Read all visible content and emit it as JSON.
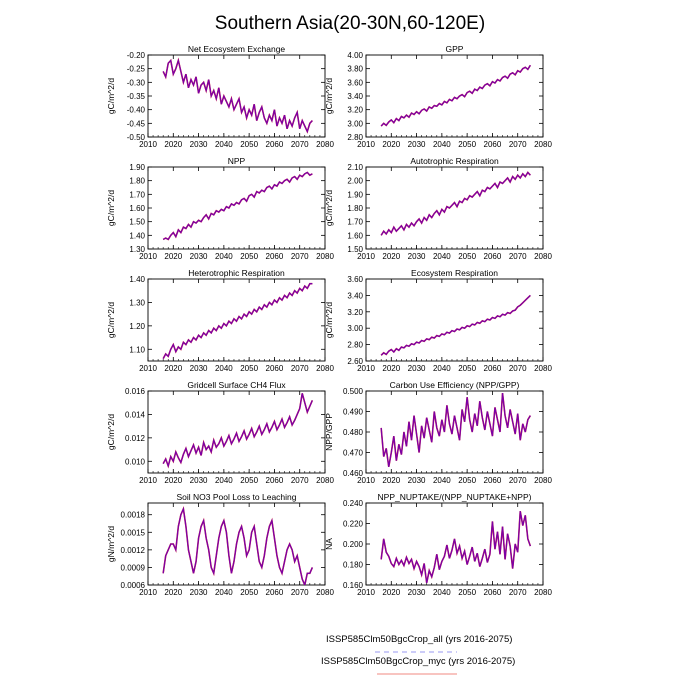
{
  "title": "Southern Asia(20-30N,60-120E)",
  "colors": {
    "series_all": "#3a3aee",
    "series_myc": "#e8382e",
    "overlap": "#7a00a8"
  },
  "legend": {
    "entries": [
      {
        "name": "ISSP585Clm50BgcCrop_all (yrs 2016-2075)",
        "color": "#9a9af0",
        "dash": true
      },
      {
        "name": "ISSP585Clm50BgcCrop_myc (yrs 2016-2075)",
        "color": "#f08a80",
        "dash": false
      }
    ]
  },
  "chart_data": [
    {
      "type": "line",
      "title": "Net Ecosystem Exchange",
      "ylabel": "gC/m^2/d",
      "xlim": [
        2010,
        2080
      ],
      "ylim": [
        -0.5,
        -0.2
      ],
      "xticks": [
        2010,
        2020,
        2030,
        2040,
        2050,
        2060,
        2070,
        2080
      ],
      "yticks": [
        -0.5,
        -0.45,
        -0.4,
        -0.35,
        -0.3,
        -0.25,
        -0.2
      ],
      "ytick_labels": [
        "-0.50",
        "-0.45",
        "-0.40",
        "-0.35",
        "-0.30",
        "-0.25",
        "-0.20"
      ],
      "x_start": 2016,
      "values": [
        -0.26,
        -0.28,
        -0.23,
        -0.22,
        -0.27,
        -0.25,
        -0.22,
        -0.26,
        -0.3,
        -0.27,
        -0.32,
        -0.29,
        -0.31,
        -0.28,
        -0.34,
        -0.31,
        -0.3,
        -0.33,
        -0.29,
        -0.35,
        -0.33,
        -0.36,
        -0.32,
        -0.38,
        -0.35,
        -0.37,
        -0.39,
        -0.36,
        -0.4,
        -0.38,
        -0.36,
        -0.41,
        -0.39,
        -0.43,
        -0.4,
        -0.42,
        -0.38,
        -0.44,
        -0.41,
        -0.39,
        -0.43,
        -0.45,
        -0.42,
        -0.44,
        -0.4,
        -0.46,
        -0.43,
        -0.45,
        -0.42,
        -0.47,
        -0.44,
        -0.46,
        -0.43,
        -0.41,
        -0.47,
        -0.44,
        -0.46,
        -0.48,
        -0.45,
        -0.44
      ]
    },
    {
      "type": "line",
      "title": "GPP",
      "ylabel": "gC/m^2/d",
      "xlim": [
        2010,
        2080
      ],
      "ylim": [
        2.8,
        4.0
      ],
      "xticks": [
        2010,
        2020,
        2030,
        2040,
        2050,
        2060,
        2070,
        2080
      ],
      "yticks": [
        2.8,
        3.0,
        3.2,
        3.4,
        3.6,
        3.8,
        4.0
      ],
      "ytick_labels": [
        "2.80",
        "3.00",
        "3.20",
        "3.40",
        "3.60",
        "3.80",
        "4.00"
      ],
      "x_start": 2016,
      "values": [
        2.96,
        3.0,
        2.97,
        3.02,
        3.05,
        3.01,
        3.07,
        3.04,
        3.1,
        3.08,
        3.12,
        3.09,
        3.15,
        3.13,
        3.17,
        3.14,
        3.19,
        3.21,
        3.18,
        3.24,
        3.22,
        3.26,
        3.25,
        3.29,
        3.27,
        3.32,
        3.3,
        3.35,
        3.33,
        3.38,
        3.36,
        3.4,
        3.42,
        3.39,
        3.45,
        3.47,
        3.44,
        3.5,
        3.48,
        3.53,
        3.51,
        3.56,
        3.58,
        3.55,
        3.61,
        3.59,
        3.64,
        3.62,
        3.67,
        3.69,
        3.66,
        3.72,
        3.74,
        3.71,
        3.77,
        3.75,
        3.8,
        3.82,
        3.79,
        3.85
      ]
    },
    {
      "type": "line",
      "title": "NPP",
      "ylabel": "gC/m^2/d",
      "xlim": [
        2010,
        2080
      ],
      "ylim": [
        1.3,
        1.9
      ],
      "xticks": [
        2010,
        2020,
        2030,
        2040,
        2050,
        2060,
        2070,
        2080
      ],
      "yticks": [
        1.3,
        1.4,
        1.5,
        1.6,
        1.7,
        1.8,
        1.9
      ],
      "ytick_labels": [
        "1.30",
        "1.40",
        "1.50",
        "1.60",
        "1.70",
        "1.80",
        "1.90"
      ],
      "x_start": 2016,
      "values": [
        1.37,
        1.38,
        1.37,
        1.4,
        1.42,
        1.39,
        1.44,
        1.42,
        1.46,
        1.45,
        1.48,
        1.46,
        1.5,
        1.49,
        1.51,
        1.5,
        1.53,
        1.55,
        1.52,
        1.56,
        1.55,
        1.58,
        1.57,
        1.59,
        1.58,
        1.61,
        1.6,
        1.63,
        1.62,
        1.64,
        1.63,
        1.66,
        1.67,
        1.65,
        1.69,
        1.7,
        1.68,
        1.72,
        1.71,
        1.73,
        1.72,
        1.75,
        1.76,
        1.74,
        1.77,
        1.76,
        1.79,
        1.78,
        1.8,
        1.81,
        1.79,
        1.82,
        1.83,
        1.81,
        1.84,
        1.83,
        1.85,
        1.86,
        1.84,
        1.85
      ]
    },
    {
      "type": "line",
      "title": "Autotrophic Respiration",
      "ylabel": "gC/m^2/d",
      "xlim": [
        2010,
        2080
      ],
      "ylim": [
        1.5,
        2.1
      ],
      "xticks": [
        2010,
        2020,
        2030,
        2040,
        2050,
        2060,
        2070,
        2080
      ],
      "yticks": [
        1.5,
        1.6,
        1.7,
        1.8,
        1.9,
        2.0,
        2.1
      ],
      "ytick_labels": [
        "1.50",
        "1.60",
        "1.70",
        "1.80",
        "1.90",
        "2.00",
        "2.10"
      ],
      "x_start": 2016,
      "values": [
        1.6,
        1.63,
        1.61,
        1.64,
        1.62,
        1.66,
        1.63,
        1.65,
        1.67,
        1.64,
        1.68,
        1.66,
        1.69,
        1.67,
        1.7,
        1.72,
        1.69,
        1.73,
        1.71,
        1.75,
        1.73,
        1.76,
        1.78,
        1.75,
        1.79,
        1.77,
        1.81,
        1.8,
        1.82,
        1.84,
        1.81,
        1.85,
        1.84,
        1.87,
        1.86,
        1.89,
        1.88,
        1.9,
        1.92,
        1.89,
        1.93,
        1.92,
        1.95,
        1.94,
        1.96,
        1.98,
        1.95,
        1.99,
        1.98,
        2.0,
        2.02,
        1.99,
        2.03,
        2.01,
        2.04,
        2.02,
        2.05,
        2.03,
        2.06,
        2.04
      ]
    },
    {
      "type": "line",
      "title": "Heterotrophic Respiration",
      "ylabel": "gC/m^2/d",
      "xlim": [
        2010,
        2080
      ],
      "ylim": [
        1.05,
        1.4
      ],
      "xticks": [
        2010,
        2020,
        2030,
        2040,
        2050,
        2060,
        2070,
        2080
      ],
      "yticks": [
        1.1,
        1.2,
        1.3,
        1.4
      ],
      "ytick_labels": [
        "1.10",
        "1.20",
        "1.30",
        "1.40"
      ],
      "x_start": 2016,
      "values": [
        1.06,
        1.08,
        1.07,
        1.1,
        1.12,
        1.09,
        1.11,
        1.1,
        1.13,
        1.12,
        1.14,
        1.13,
        1.15,
        1.14,
        1.16,
        1.15,
        1.17,
        1.16,
        1.18,
        1.17,
        1.19,
        1.18,
        1.2,
        1.19,
        1.21,
        1.2,
        1.22,
        1.21,
        1.23,
        1.22,
        1.24,
        1.23,
        1.25,
        1.24,
        1.26,
        1.25,
        1.27,
        1.26,
        1.28,
        1.27,
        1.29,
        1.28,
        1.3,
        1.29,
        1.31,
        1.3,
        1.32,
        1.31,
        1.33,
        1.32,
        1.34,
        1.33,
        1.35,
        1.34,
        1.36,
        1.35,
        1.37,
        1.36,
        1.38,
        1.38
      ]
    },
    {
      "type": "line",
      "title": "Ecosystem Respiration",
      "ylabel": "gC/m^2/d",
      "xlim": [
        2010,
        2080
      ],
      "ylim": [
        2.6,
        3.6
      ],
      "xticks": [
        2010,
        2020,
        2030,
        2040,
        2050,
        2060,
        2070,
        2080
      ],
      "yticks": [
        2.6,
        2.8,
        3.0,
        3.2,
        3.4,
        3.6
      ],
      "ytick_labels": [
        "2.60",
        "2.80",
        "3.00",
        "3.20",
        "3.40",
        "3.60"
      ],
      "x_start": 2016,
      "values": [
        2.67,
        2.7,
        2.68,
        2.72,
        2.74,
        2.71,
        2.75,
        2.73,
        2.77,
        2.76,
        2.79,
        2.78,
        2.81,
        2.8,
        2.83,
        2.82,
        2.85,
        2.84,
        2.87,
        2.86,
        2.89,
        2.88,
        2.91,
        2.9,
        2.93,
        2.92,
        2.95,
        2.94,
        2.97,
        2.96,
        2.99,
        2.98,
        3.01,
        3.0,
        3.03,
        3.02,
        3.05,
        3.04,
        3.07,
        3.06,
        3.09,
        3.08,
        3.11,
        3.1,
        3.13,
        3.12,
        3.15,
        3.14,
        3.17,
        3.16,
        3.19,
        3.18,
        3.21,
        3.22,
        3.26,
        3.28,
        3.31,
        3.34,
        3.37,
        3.4
      ]
    },
    {
      "type": "line",
      "title": "Gridcell Surface CH4 Flux",
      "ylabel": "gC/m^2/d",
      "xlim": [
        2010,
        2080
      ],
      "ylim": [
        0.009,
        0.016
      ],
      "xticks": [
        2010,
        2020,
        2030,
        2040,
        2050,
        2060,
        2070,
        2080
      ],
      "yticks": [
        0.01,
        0.012,
        0.014,
        0.016
      ],
      "ytick_labels": [
        "0.010",
        "0.012",
        "0.014",
        "0.016"
      ],
      "x_start": 2016,
      "values": [
        0.0098,
        0.0102,
        0.0096,
        0.0104,
        0.01,
        0.0108,
        0.0103,
        0.0099,
        0.0106,
        0.0111,
        0.0104,
        0.0109,
        0.0114,
        0.0107,
        0.0112,
        0.0105,
        0.0116,
        0.011,
        0.0113,
        0.0108,
        0.0118,
        0.0112,
        0.0115,
        0.012,
        0.0113,
        0.0117,
        0.0122,
        0.0115,
        0.0119,
        0.0124,
        0.0117,
        0.0121,
        0.0126,
        0.0119,
        0.0123,
        0.0128,
        0.0121,
        0.0125,
        0.013,
        0.0123,
        0.0127,
        0.0132,
        0.0125,
        0.0129,
        0.0134,
        0.0127,
        0.0131,
        0.0136,
        0.0129,
        0.0133,
        0.0138,
        0.0131,
        0.0135,
        0.014,
        0.0145,
        0.0158,
        0.015,
        0.0142,
        0.0147,
        0.0152
      ]
    },
    {
      "type": "line",
      "title": "Carbon Use Efficiency (NPP/GPP)",
      "ylabel": "NPP/GPP",
      "xlim": [
        2010,
        2080
      ],
      "ylim": [
        0.46,
        0.5
      ],
      "xticks": [
        2010,
        2020,
        2030,
        2040,
        2050,
        2060,
        2070,
        2080
      ],
      "yticks": [
        0.46,
        0.47,
        0.48,
        0.49,
        0.5
      ],
      "ytick_labels": [
        "0.460",
        "0.470",
        "0.480",
        "0.490",
        "0.500"
      ],
      "x_start": 2016,
      "values": [
        0.482,
        0.468,
        0.472,
        0.463,
        0.47,
        0.478,
        0.466,
        0.474,
        0.469,
        0.48,
        0.473,
        0.485,
        0.476,
        0.488,
        0.479,
        0.47,
        0.483,
        0.477,
        0.487,
        0.481,
        0.475,
        0.49,
        0.482,
        0.478,
        0.486,
        0.48,
        0.493,
        0.484,
        0.479,
        0.488,
        0.482,
        0.476,
        0.491,
        0.485,
        0.497,
        0.486,
        0.48,
        0.489,
        0.483,
        0.495,
        0.487,
        0.481,
        0.49,
        0.484,
        0.478,
        0.492,
        0.486,
        0.48,
        0.499,
        0.488,
        0.482,
        0.491,
        0.485,
        0.479,
        0.489,
        0.476,
        0.484,
        0.48,
        0.486,
        0.488
      ]
    },
    {
      "type": "line",
      "title": "Soil NO3 Pool Loss to Leaching",
      "ylabel": "gN/m^2/d",
      "xlim": [
        2010,
        2080
      ],
      "ylim": [
        0.0006,
        0.002
      ],
      "xticks": [
        2010,
        2020,
        2030,
        2040,
        2050,
        2060,
        2070,
        2080
      ],
      "yticks": [
        0.0006,
        0.0009,
        0.0012,
        0.0015,
        0.0018
      ],
      "ytick_labels": [
        "0.0006",
        "0.0009",
        "0.0012",
        "0.0015",
        "0.0018"
      ],
      "x_start": 2016,
      "values": [
        0.0008,
        0.0011,
        0.0012,
        0.0013,
        0.0013,
        0.0012,
        0.0016,
        0.0018,
        0.0019,
        0.0016,
        0.0012,
        0.001,
        0.0008,
        0.001,
        0.0014,
        0.0016,
        0.0017,
        0.0014,
        0.0012,
        0.0009,
        0.0008,
        0.0011,
        0.0014,
        0.0016,
        0.0017,
        0.0015,
        0.0011,
        0.0008,
        0.001,
        0.0013,
        0.0015,
        0.0016,
        0.0014,
        0.0011,
        0.0012,
        0.0015,
        0.0016,
        0.0013,
        0.001,
        0.0009,
        0.0011,
        0.0014,
        0.0016,
        0.0017,
        0.0014,
        0.0011,
        0.0009,
        0.0008,
        0.001,
        0.0012,
        0.0013,
        0.0012,
        0.001,
        0.0011,
        0.0009,
        0.0007,
        0.0006,
        0.0008,
        0.0008,
        0.0009
      ]
    },
    {
      "type": "line",
      "title": "NPP_NUPTAKE/(NPP_NUPTAKE+NPP)",
      "ylabel": "NA",
      "xlim": [
        2010,
        2080
      ],
      "ylim": [
        0.16,
        0.24
      ],
      "xticks": [
        2010,
        2020,
        2030,
        2040,
        2050,
        2060,
        2070,
        2080
      ],
      "yticks": [
        0.16,
        0.18,
        0.2,
        0.22,
        0.24
      ],
      "ytick_labels": [
        "0.160",
        "0.180",
        "0.200",
        "0.220",
        "0.240"
      ],
      "x_start": 2016,
      "values": [
        0.185,
        0.205,
        0.192,
        0.188,
        0.181,
        0.178,
        0.186,
        0.18,
        0.184,
        0.179,
        0.187,
        0.181,
        0.185,
        0.176,
        0.183,
        0.178,
        0.17,
        0.181,
        0.162,
        0.174,
        0.168,
        0.177,
        0.19,
        0.175,
        0.183,
        0.188,
        0.199,
        0.186,
        0.194,
        0.205,
        0.191,
        0.198,
        0.186,
        0.193,
        0.18,
        0.188,
        0.197,
        0.183,
        0.191,
        0.178,
        0.186,
        0.195,
        0.182,
        0.19,
        0.222,
        0.195,
        0.212,
        0.19,
        0.217,
        0.185,
        0.21,
        0.198,
        0.176,
        0.2,
        0.192,
        0.232,
        0.218,
        0.228,
        0.205,
        0.198
      ]
    }
  ]
}
